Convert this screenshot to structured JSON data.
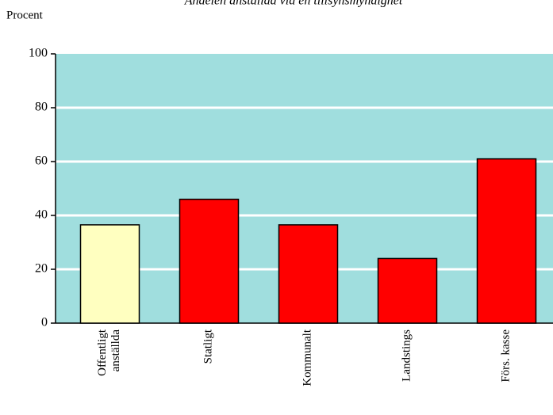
{
  "chart_data": {
    "type": "bar",
    "title": "Andelen anställda vid en tillsynsmyndighet",
    "y_label": "Procent",
    "categories": [
      "Offentligt\nanställda",
      "Statligt",
      "Kommunalt",
      "Landstings",
      "Förs. kasse"
    ],
    "values": [
      36.5,
      46,
      36.5,
      24,
      61
    ],
    "colors": [
      "#ffffc0",
      "#ff0000",
      "#ff0000",
      "#ff0000",
      "#ff0000"
    ],
    "ylim": [
      0,
      100
    ],
    "yticks": [
      0,
      20,
      40,
      60,
      80,
      100
    ],
    "grid": true
  }
}
